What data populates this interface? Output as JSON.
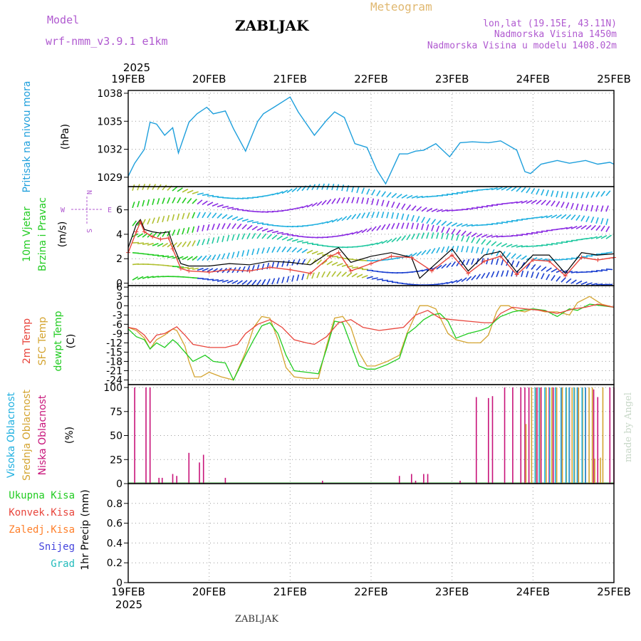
{
  "header": {
    "model_label": "Model",
    "model_name": "wrf-nmm_v3.9.1 e1km",
    "station": "ZABLJAK",
    "product": "Meteogram",
    "lonlat": "lon,lat (19.15E, 43.11N)",
    "altitude": "Nadmorska Visina 1450m",
    "model_altitude": "Nadmorska Visina u modelu 1408.02m",
    "credit": "made by Angel",
    "footer": "ZABLJAK"
  },
  "colors": {
    "pressure": "#1e9fdc",
    "temp2m": "#e8453c",
    "sfc": "#d4a430",
    "dewpt": "#22cc22",
    "cloud_high": "#20b0e0",
    "cloud_mid": "#d4a430",
    "cloud_low": "#c8147a",
    "wind_speed": "#e8453c",
    "gust": "#000000"
  },
  "chart_data": [
    {
      "type": "line",
      "title": "",
      "ylabel": [
        "Pritisak na nivou mora",
        "(hPa)"
      ],
      "ylim": [
        1028,
        1038.3
      ],
      "yticks": [
        "1038",
        "1035",
        "1032",
        "1029"
      ],
      "x_start": "19FEB2025",
      "x_end": "25FEB2025",
      "xticks": [
        "19FEB",
        "20FEB",
        "21FEB",
        "22FEB",
        "23FEB",
        "24FEB",
        "25FEB"
      ],
      "year_label": "2025",
      "series": [
        {
          "name": "",
          "x_days": [
            0,
            0.08,
            0.2,
            0.27,
            0.35,
            0.45,
            0.55,
            0.62,
            0.75,
            0.85,
            0.97,
            1.05,
            1.2,
            1.3,
            1.45,
            1.6,
            1.67,
            1.8,
            2.0,
            2.1,
            2.3,
            2.45,
            2.55,
            2.67,
            2.8,
            2.95,
            3.07,
            3.18,
            3.35,
            3.45,
            3.55,
            3.65,
            3.8,
            3.97,
            4.1,
            4.25,
            4.45,
            4.6,
            4.8,
            4.9,
            4.97,
            5.1,
            5.3,
            5.45,
            5.65,
            5.8,
            5.95,
            6.0
          ],
          "values": [
            1029.1,
            1030.5,
            1032,
            1034.9,
            1034.7,
            1033.5,
            1034.3,
            1031.6,
            1034.9,
            1035.8,
            1036.5,
            1035.8,
            1036.1,
            1034.2,
            1031.8,
            1035,
            1035.8,
            1036.5,
            1037.6,
            1036,
            1033.5,
            1035.1,
            1036,
            1035.4,
            1032.6,
            1032.2,
            1029.8,
            1028.3,
            1031.5,
            1031.5,
            1031.8,
            1031.9,
            1032.6,
            1031.2,
            1032.7,
            1032.8,
            1032.7,
            1032.9,
            1031.9,
            1029.6,
            1029.4,
            1030.4,
            1030.8,
            1030.5,
            1030.8,
            1030.4,
            1030.6,
            1030.4
          ]
        }
      ]
    },
    {
      "type": "line",
      "title": "",
      "ylabel": [
        "10m Vjetar",
        "Brzina i Pravac",
        "(m/s)"
      ],
      "direction_labels": [
        "N",
        "W",
        "E",
        "S"
      ],
      "ylim": [
        -0.2,
        7.9
      ],
      "yticks": [
        "6",
        "4",
        "2",
        "0"
      ],
      "series": [
        {
          "name": "",
          "x_days": [
            0,
            0.1,
            0.15,
            0.2,
            0.3,
            0.4,
            0.5,
            0.55,
            0.65,
            0.75,
            1.0,
            1.25,
            1.5,
            1.75,
            2.0,
            2.25,
            2.5,
            2.6,
            2.75,
            3.0,
            3.25,
            3.5,
            3.75,
            4.0,
            4.2,
            4.4,
            4.6,
            4.8,
            5.0,
            5.2,
            5.4,
            5.6,
            5.8,
            6.0
          ],
          "values": [
            2.5,
            4.2,
            5.0,
            4.2,
            3.8,
            3.6,
            3.7,
            2.8,
            1.2,
            1.0,
            0.9,
            1.1,
            1.0,
            1.3,
            1.1,
            0.8,
            2.2,
            2.5,
            1.0,
            1.6,
            2.2,
            2.1,
            1.0,
            2.3,
            0.8,
            1.8,
            2.2,
            0.7,
            1.9,
            1.8,
            0.6,
            2.1,
            1.9,
            2.1
          ]
        },
        {
          "name": "",
          "x_days": [
            0,
            0.1,
            0.15,
            0.2,
            0.3,
            0.4,
            0.5,
            0.55,
            0.65,
            0.75,
            1.0,
            1.25,
            1.5,
            1.75,
            2.0,
            2.25,
            2.5,
            2.6,
            2.75,
            3.0,
            3.25,
            3.5,
            3.6,
            3.75,
            4.0,
            4.2,
            4.4,
            4.6,
            4.8,
            5.0,
            5.2,
            5.4,
            5.6,
            5.8,
            6.0
          ],
          "values": [
            2.9,
            4.8,
            5.2,
            4.4,
            4.2,
            4.1,
            4.2,
            3.2,
            1.6,
            1.4,
            1.4,
            1.6,
            1.5,
            1.8,
            1.7,
            1.5,
            2.6,
            2.9,
            1.7,
            2.2,
            2.5,
            2.1,
            0.4,
            1.3,
            2.8,
            1.0,
            2.3,
            2.6,
            0.9,
            2.3,
            2.3,
            0.8,
            2.5,
            2.3,
            2.4
          ]
        }
      ]
    },
    {
      "type": "line",
      "title": "",
      "ylabel": [
        "2m Temp",
        "SFC Temp",
        "dewpt Temp",
        "(C)"
      ],
      "ylim": [
        -25.5,
        6.5
      ],
      "yticks": [
        "6",
        "3",
        "0",
        "-3",
        "-6",
        "-9",
        "-12",
        "-15",
        "-18",
        "-21",
        "-24"
      ],
      "series": [
        {
          "name": "2m Temp",
          "x_days": [
            0,
            0.1,
            0.2,
            0.27,
            0.35,
            0.45,
            0.6,
            0.7,
            0.8,
            1.0,
            1.2,
            1.35,
            1.45,
            1.6,
            1.75,
            1.9,
            2.05,
            2.2,
            2.3,
            2.45,
            2.6,
            2.75,
            2.9,
            3.1,
            3.25,
            3.4,
            3.55,
            3.7,
            3.85,
            4.0,
            4.2,
            4.4,
            4.5,
            4.6,
            4.75,
            4.9,
            5.1,
            5.3,
            5.5,
            5.65,
            5.8,
            6.0
          ],
          "values": [
            -7,
            -7.5,
            -9.5,
            -12,
            -9.5,
            -9,
            -6.8,
            -9.5,
            -12.5,
            -13.5,
            -13.5,
            -12.5,
            -9,
            -6,
            -4.5,
            -7,
            -11,
            -12,
            -12.5,
            -10,
            -5.5,
            -4.5,
            -7,
            -8,
            -7.5,
            -7,
            -3,
            -1.5,
            -4,
            -4.5,
            -5,
            -5.5,
            -5.5,
            -2.5,
            -0.5,
            -1,
            -1.5,
            -2.5,
            -1,
            -0.5,
            0.5,
            -0.5
          ]
        },
        {
          "name": "SFC Temp",
          "x_days": [
            0,
            0.1,
            0.2,
            0.27,
            0.35,
            0.45,
            0.55,
            0.6,
            0.7,
            0.75,
            0.82,
            0.9,
            1.0,
            1.15,
            1.3,
            1.45,
            1.55,
            1.65,
            1.75,
            1.85,
            1.95,
            2.05,
            2.2,
            2.35,
            2.45,
            2.55,
            2.65,
            2.75,
            2.85,
            2.95,
            3.05,
            3.2,
            3.35,
            3.45,
            3.6,
            3.7,
            3.8,
            3.95,
            4.05,
            4.2,
            4.35,
            4.45,
            4.55,
            4.6,
            4.7,
            4.8,
            4.9,
            5.0,
            5.15,
            5.3,
            5.45,
            5.55,
            5.7,
            5.85,
            6.0
          ],
          "values": [
            -7,
            -8,
            -10.5,
            -14,
            -11,
            -9.5,
            -7.5,
            -8,
            -13,
            -18,
            -23,
            -23,
            -21.5,
            -23,
            -24,
            -15,
            -7,
            -3.5,
            -4,
            -11,
            -20,
            -23,
            -23.5,
            -23.5,
            -13,
            -4,
            -3.5,
            -7,
            -15,
            -19.5,
            -19.5,
            -18,
            -16,
            -8.5,
            0,
            0,
            -1,
            -9,
            -11,
            -12,
            -12,
            -9.5,
            -2,
            0,
            0,
            -1.5,
            -2,
            -1,
            -2,
            -2,
            -3,
            1,
            3,
            0.5,
            -0.5
          ]
        },
        {
          "name": "dewpt Temp",
          "x_days": [
            0,
            0.1,
            0.2,
            0.27,
            0.35,
            0.45,
            0.55,
            0.6,
            0.7,
            0.8,
            0.95,
            1.05,
            1.2,
            1.3,
            1.45,
            1.55,
            1.65,
            1.75,
            1.85,
            1.95,
            2.05,
            2.2,
            2.35,
            2.45,
            2.55,
            2.65,
            2.75,
            2.85,
            2.95,
            3.05,
            3.2,
            3.35,
            3.45,
            3.55,
            3.65,
            3.75,
            3.85,
            3.95,
            4.05,
            4.2,
            4.35,
            4.45,
            4.55,
            4.6,
            4.75,
            4.85,
            5.0,
            5.15,
            5.3,
            5.45,
            5.55,
            5.7,
            5.85,
            6.0
          ],
          "values": [
            -7.5,
            -10,
            -11,
            -14,
            -12,
            -13.5,
            -11,
            -12,
            -15,
            -18,
            -16,
            -18,
            -18.5,
            -24,
            -16,
            -11,
            -6.5,
            -5.5,
            -9,
            -16,
            -21,
            -21.5,
            -22,
            -14,
            -5,
            -5.5,
            -12.5,
            -19.5,
            -20.5,
            -20.5,
            -19,
            -17,
            -9,
            -7,
            -4.5,
            -3,
            -2.5,
            -5,
            -10.5,
            -9,
            -8,
            -7,
            -4.5,
            -3.5,
            -2,
            -1.5,
            -1,
            -1.5,
            -3.5,
            -1,
            -1.5,
            0.5,
            0,
            -0.5
          ]
        }
      ]
    },
    {
      "type": "bar",
      "title": "",
      "ylabel": [
        "Visoka Oblacnost",
        "Srednja Oblacnost",
        "Niska Oblacnost",
        "(%)"
      ],
      "ylim": [
        0,
        103
      ],
      "yticks": [
        "100",
        "75",
        "50",
        "25",
        "0"
      ],
      "series": [
        {
          "name": "Niska Oblacnost",
          "x_days": [
            0.08,
            0.22,
            0.27,
            0.38,
            0.42,
            0.55,
            0.6,
            0.75,
            0.88,
            0.93,
            1.2,
            2.4,
            3.35,
            3.5,
            3.55,
            3.65,
            3.7,
            4.1,
            4.3,
            4.45,
            4.5,
            4.65,
            4.75,
            4.85,
            4.9,
            4.95,
            5.05,
            5.1,
            5.2,
            5.25,
            5.35,
            5.45,
            5.55,
            5.65,
            5.75,
            5.8,
            5.95,
            6.0
          ],
          "values": [
            100,
            100,
            100,
            6,
            6,
            10,
            8,
            32,
            22,
            30,
            6,
            3,
            8,
            10,
            3,
            10,
            10,
            3,
            90,
            89,
            91,
            100,
            100,
            100,
            100,
            100,
            100,
            100,
            100,
            100,
            100,
            100,
            100,
            100,
            98,
            90,
            100,
            100
          ]
        },
        {
          "name": "Srednja Oblacnost",
          "x_days": [
            4.9,
            4.97,
            5.02,
            5.07,
            5.15,
            5.22,
            5.28,
            5.35,
            5.4,
            5.47,
            5.5,
            5.55,
            5.6,
            5.68,
            5.72,
            5.75,
            5.82,
            5.85
          ],
          "values": [
            62,
            100,
            100,
            100,
            100,
            100,
            100,
            100,
            100,
            100,
            100,
            100,
            100,
            100,
            100,
            26,
            27,
            100
          ]
        },
        {
          "name": "Visoka Oblacnost",
          "x_days": [
            5.0,
            5.05,
            5.12,
            5.18,
            5.25,
            5.32,
            5.38,
            5.42,
            5.48,
            5.52,
            5.58,
            5.62
          ],
          "values": [
            100,
            100,
            100,
            100,
            100,
            100,
            100,
            100,
            100,
            100,
            100,
            100
          ]
        }
      ]
    },
    {
      "type": "bar",
      "title": "",
      "ylabel": [
        "1hr Precip (mm)"
      ],
      "legend": [
        "Ukupna Kisa",
        "Konvek.Kisa",
        "Zaledj.Kisa",
        "Snijeg",
        "Grad"
      ],
      "legend_colors": [
        "#22cc22",
        "#e8453c",
        "#ff7f2a",
        "#4444dd",
        "#22bbbb"
      ],
      "ylim": [
        0,
        1.0
      ],
      "yticks": [
        "0.8",
        "0.6",
        "0.4",
        "0.2",
        "0"
      ],
      "series": []
    }
  ]
}
